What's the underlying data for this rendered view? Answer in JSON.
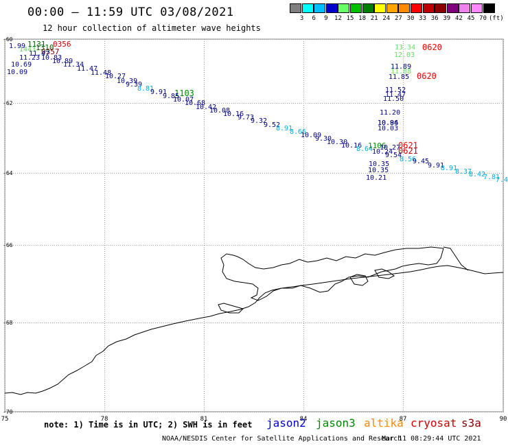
{
  "title": "00:00 – 11:59 UTC 03/08/2021",
  "subtitle": "12 hour collection of altimeter wave heights",
  "legend": {
    "unit": "(ft)",
    "colors": [
      "#808080",
      "#00ffff",
      "#00bfff",
      "#0000cd",
      "#66ff66",
      "#00c000",
      "#008000",
      "#ffff00",
      "#ffa500",
      "#ff8c00",
      "#ff0000",
      "#c00000",
      "#8b0000",
      "#800080",
      "#ee82ee",
      "#ff88ff",
      "#000000"
    ],
    "labels": [
      "3",
      "6",
      "9",
      "12",
      "15",
      "18",
      "21",
      "24",
      "27",
      "30",
      "33",
      "36",
      "39",
      "42",
      "45",
      "70"
    ]
  },
  "map": {
    "lon_labels": [
      "75",
      "78",
      "81",
      "84",
      "87",
      "90"
    ],
    "lat_labels": [
      "-60",
      "-62",
      "-64",
      "-66",
      "-68",
      "-70"
    ]
  },
  "note": "note: 1) Time is in UTC; 2) SWH is in feet",
  "satellites": [
    {
      "name": "jason2",
      "color": "#0000cc"
    },
    {
      "name": "jason3",
      "color": "#008800"
    },
    {
      "name": "altika",
      "color": "#ff8800"
    },
    {
      "name": "cryosat",
      "color": "#cc0000"
    },
    {
      "name": "s3a",
      "color": "#880000"
    }
  ],
  "footer": "NOAA/NESDIS Center for Satellite Applications and Research",
  "timestamp": "Mar 11 08:29:44 UTC 2021",
  "track_labels": [
    {
      "t": "1.99",
      "c": "#000080"
    },
    {
      "t": "1131",
      "c": "#006600"
    },
    {
      "t": "0356",
      "c": "#cc0000"
    },
    {
      "t": "1443",
      "c": "#66cc66"
    },
    {
      "t": "1310",
      "c": "#006600"
    },
    {
      "t": "0357",
      "c": "#880000"
    },
    {
      "t": "11.47",
      "c": "#000080"
    },
    {
      "t": "11.23",
      "c": "#000080"
    },
    {
      "t": "10.83",
      "c": "#000080"
    },
    {
      "t": "10.69",
      "c": "#000080"
    },
    {
      "t": "10.09",
      "c": "#000080"
    },
    {
      "t": "10.89",
      "c": "#000080"
    },
    {
      "t": "11.34",
      "c": "#000080"
    },
    {
      "t": "11.47",
      "c": "#000080"
    },
    {
      "t": "11.48",
      "c": "#000080"
    },
    {
      "t": "10.27",
      "c": "#000080"
    },
    {
      "t": "10.39",
      "c": "#000080"
    },
    {
      "t": "9.39",
      "c": "#000080"
    },
    {
      "t": "8.81",
      "c": "#00aadd"
    },
    {
      "t": "9.91",
      "c": "#000080"
    },
    {
      "t": "1103",
      "c": "#008800"
    },
    {
      "t": "9.85",
      "c": "#000080"
    },
    {
      "t": "10.07",
      "c": "#000080"
    },
    {
      "t": "10.68",
      "c": "#000080"
    },
    {
      "t": "10.42",
      "c": "#000080"
    },
    {
      "t": "10.08",
      "c": "#000080"
    },
    {
      "t": "10.16",
      "c": "#000080"
    },
    {
      "t": "9.73",
      "c": "#000080"
    },
    {
      "t": "9.32",
      "c": "#000080"
    },
    {
      "t": "9.52",
      "c": "#000080"
    },
    {
      "t": "8.91",
      "c": "#00aadd"
    },
    {
      "t": "8.66",
      "c": "#00aadd"
    },
    {
      "t": "10.09",
      "c": "#000080"
    },
    {
      "t": "9.30",
      "c": "#000080"
    },
    {
      "t": "10.30",
      "c": "#000080"
    },
    {
      "t": "10.16",
      "c": "#000080"
    },
    {
      "t": "8.64",
      "c": "#00aadd"
    },
    {
      "t": "1106",
      "c": "#008800"
    },
    {
      "t": "10.27",
      "c": "#000080"
    },
    {
      "t": "0621",
      "c": "#ff0000"
    },
    {
      "t": "0621",
      "c": "#cc0000"
    },
    {
      "t": "10.24",
      "c": "#000080"
    },
    {
      "t": "9.54",
      "c": "#000080"
    },
    {
      "t": "8.56",
      "c": "#00aadd"
    },
    {
      "t": "9.45",
      "c": "#000080"
    },
    {
      "t": "9.91",
      "c": "#000080"
    },
    {
      "t": "8.91",
      "c": "#00aadd"
    },
    {
      "t": "8.37",
      "c": "#00aadd"
    },
    {
      "t": "8.42",
      "c": "#00aadd"
    },
    {
      "t": "7.81",
      "c": "#00aadd"
    },
    {
      "t": "7.4",
      "c": "#00aadd"
    },
    {
      "t": "10.35",
      "c": "#000080"
    },
    {
      "t": "10.35",
      "c": "#000080"
    },
    {
      "t": "10.21",
      "c": "#000080"
    },
    {
      "t": "13.34",
      "c": "#66dd66"
    },
    {
      "t": "0620",
      "c": "#ff0000"
    },
    {
      "t": "12.03",
      "c": "#66dd66"
    },
    {
      "t": "11.89",
      "c": "#000080"
    },
    {
      "t": "11.88",
      "c": "#66dd66"
    },
    {
      "t": "11.85",
      "c": "#000080"
    },
    {
      "t": "0620",
      "c": "#ff0000"
    },
    {
      "t": "11.52",
      "c": "#000080"
    },
    {
      "t": "11.47",
      "c": "#000080"
    },
    {
      "t": "11.50",
      "c": "#000080"
    },
    {
      "t": "11.20",
      "c": "#000080"
    },
    {
      "t": "10.84",
      "c": "#000080"
    },
    {
      "t": "10.96",
      "c": "#000080"
    },
    {
      "t": "10.03",
      "c": "#000080"
    }
  ]
}
